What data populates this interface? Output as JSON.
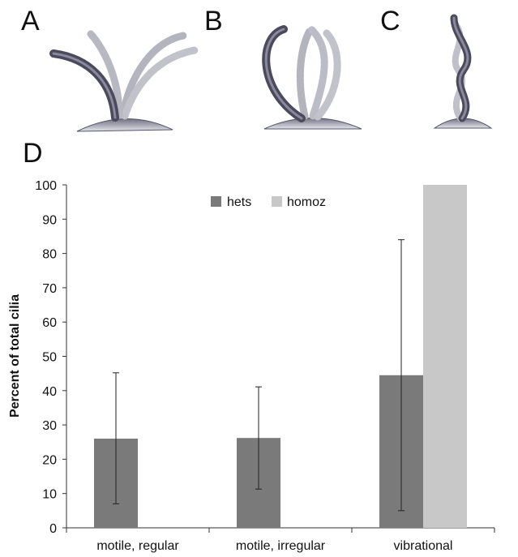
{
  "panel_labels": {
    "a": "A",
    "b": "B",
    "c": "C",
    "d": "D"
  },
  "illustration_icons": {
    "a": "cilia-spread-illustration-icon",
    "b": "cilia-arched-illustration-icon",
    "c": "cilium-helical-illustration-icon"
  },
  "chart_data": {
    "type": "bar",
    "categories": [
      "motile, regular",
      "motile, irregular",
      "vibrational"
    ],
    "series": [
      {
        "name": "hets",
        "values": [
          26,
          26.2,
          44.5
        ],
        "err_low": [
          7,
          11.3,
          5
        ],
        "err_high": [
          45.2,
          41.1,
          84
        ],
        "color": "#7a7a7a"
      },
      {
        "name": "homoz",
        "values": [
          0,
          0,
          100
        ],
        "err_low": [
          0,
          0,
          100
        ],
        "err_high": [
          0,
          0,
          100
        ],
        "color": "#c8c8c8"
      }
    ],
    "title": "",
    "xlabel": "",
    "ylabel": "Percent of total cilia",
    "ylim": [
      0,
      100
    ],
    "yticks": [
      0,
      10,
      20,
      30,
      40,
      50,
      60,
      70,
      80,
      90,
      100
    ],
    "grid": false,
    "legend_position": "top-center"
  }
}
